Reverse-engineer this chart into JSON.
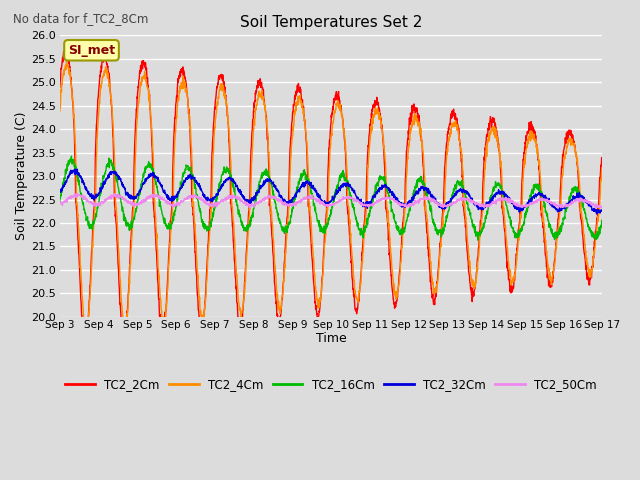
{
  "title": "Soil Temperatures Set 2",
  "subtitle": "No data for f_TC2_8Cm",
  "xlabel": "Time",
  "ylabel": "Soil Temperature (C)",
  "ylim": [
    20.0,
    26.0
  ],
  "yticks": [
    20.0,
    20.5,
    21.0,
    21.5,
    22.0,
    22.5,
    23.0,
    23.5,
    24.0,
    24.5,
    25.0,
    25.5,
    26.0
  ],
  "bg_color": "#dcdcdc",
  "plot_bg_color": "#dcdcdc",
  "grid_color": "#ffffff",
  "legend_label": "SI_met",
  "series_colors": {
    "TC2_2Cm": "#ff0000",
    "TC2_4Cm": "#ff8c00",
    "TC2_16Cm": "#00bb00",
    "TC2_32Cm": "#0000dd",
    "TC2_50Cm": "#ee88ee"
  },
  "xtick_labels": [
    "Sep 3",
    "Sep 4",
    "Sep 5",
    "Sep 6",
    "Sep 7",
    "Sep 8",
    "Sep 9",
    "Sep 10",
    "Sep 11",
    "Sep 12",
    "Sep 13",
    "Sep 14",
    "Sep 15",
    "Sep 16",
    "Sep 17"
  ],
  "num_days": 14,
  "points_per_day": 144
}
